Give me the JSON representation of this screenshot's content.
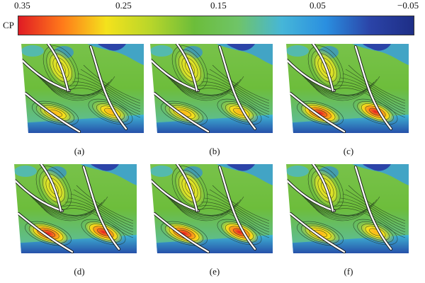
{
  "colorbar": {
    "label": "CP",
    "ticks": [
      "0.35",
      "0.25",
      "0.15",
      "0.05",
      "−0.05"
    ],
    "colors": [
      "#e01b24",
      "#ff7a1a",
      "#f4e21c",
      "#b9d62a",
      "#6cbd3a",
      "#6fc468",
      "#46b6d8",
      "#2a8fe0",
      "#2b44a8",
      "#1e2e86"
    ]
  },
  "panels": [
    {
      "caption": "(a)"
    },
    {
      "caption": "(b)"
    },
    {
      "caption": "(c)"
    },
    {
      "caption": "(d)"
    },
    {
      "caption": "(e)"
    },
    {
      "caption": "(f)"
    }
  ]
}
